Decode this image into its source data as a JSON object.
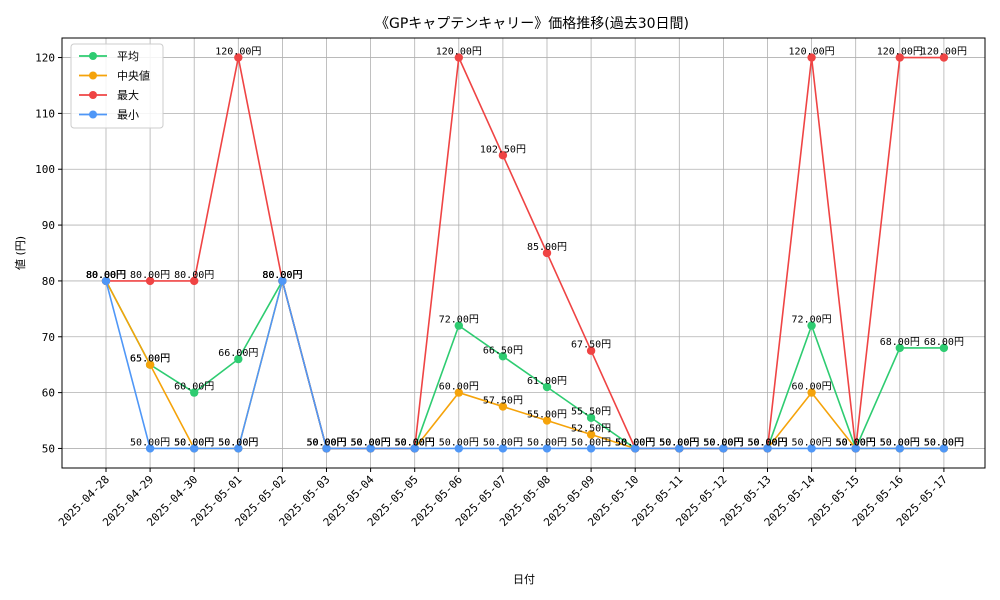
{
  "chart_data": {
    "type": "line",
    "title": "《GPキャプテンキャリー》価格推移(過去30日間)",
    "xlabel": "日付",
    "ylabel": "値 (円)",
    "ylim": [
      46.5,
      123.5
    ],
    "yticks": [
      50,
      60,
      70,
      80,
      90,
      100,
      110,
      120
    ],
    "grid": true,
    "legend_position": "top-left",
    "categories": [
      "2025-04-28",
      "2025-04-29",
      "2025-04-30",
      "2025-05-01",
      "2025-05-02",
      "2025-05-03",
      "2025-05-04",
      "2025-05-05",
      "2025-05-06",
      "2025-05-07",
      "2025-05-08",
      "2025-05-09",
      "2025-05-10",
      "2025-05-11",
      "2025-05-12",
      "2025-05-13",
      "2025-05-14",
      "2025-05-15",
      "2025-05-16",
      "2025-05-17"
    ],
    "label_suffix": "円",
    "series": [
      {
        "name": "平均",
        "color": "#2ecc71",
        "values": [
          80,
          65,
          60,
          66,
          80,
          50,
          50,
          50,
          72,
          66.5,
          61,
          55.5,
          50,
          50,
          50,
          50,
          72,
          50,
          68,
          68
        ]
      },
      {
        "name": "中央値",
        "color": "#f5a30a",
        "values": [
          80,
          65,
          50,
          50,
          80,
          50,
          50,
          50,
          60,
          57.5,
          55,
          52.5,
          50,
          50,
          50,
          50,
          60,
          50,
          50,
          50
        ]
      },
      {
        "name": "最大",
        "color": "#ef4444",
        "values": [
          80,
          80,
          80,
          120,
          80,
          50,
          50,
          50,
          120,
          102.5,
          85,
          67.5,
          50,
          50,
          50,
          50,
          120,
          50,
          120,
          120
        ]
      },
      {
        "name": "最小",
        "color": "#4f97f7",
        "values": [
          80,
          50,
          50,
          50,
          80,
          50,
          50,
          50,
          50,
          50,
          50,
          50,
          50,
          50,
          50,
          50,
          50,
          50,
          50,
          50
        ]
      }
    ]
  }
}
